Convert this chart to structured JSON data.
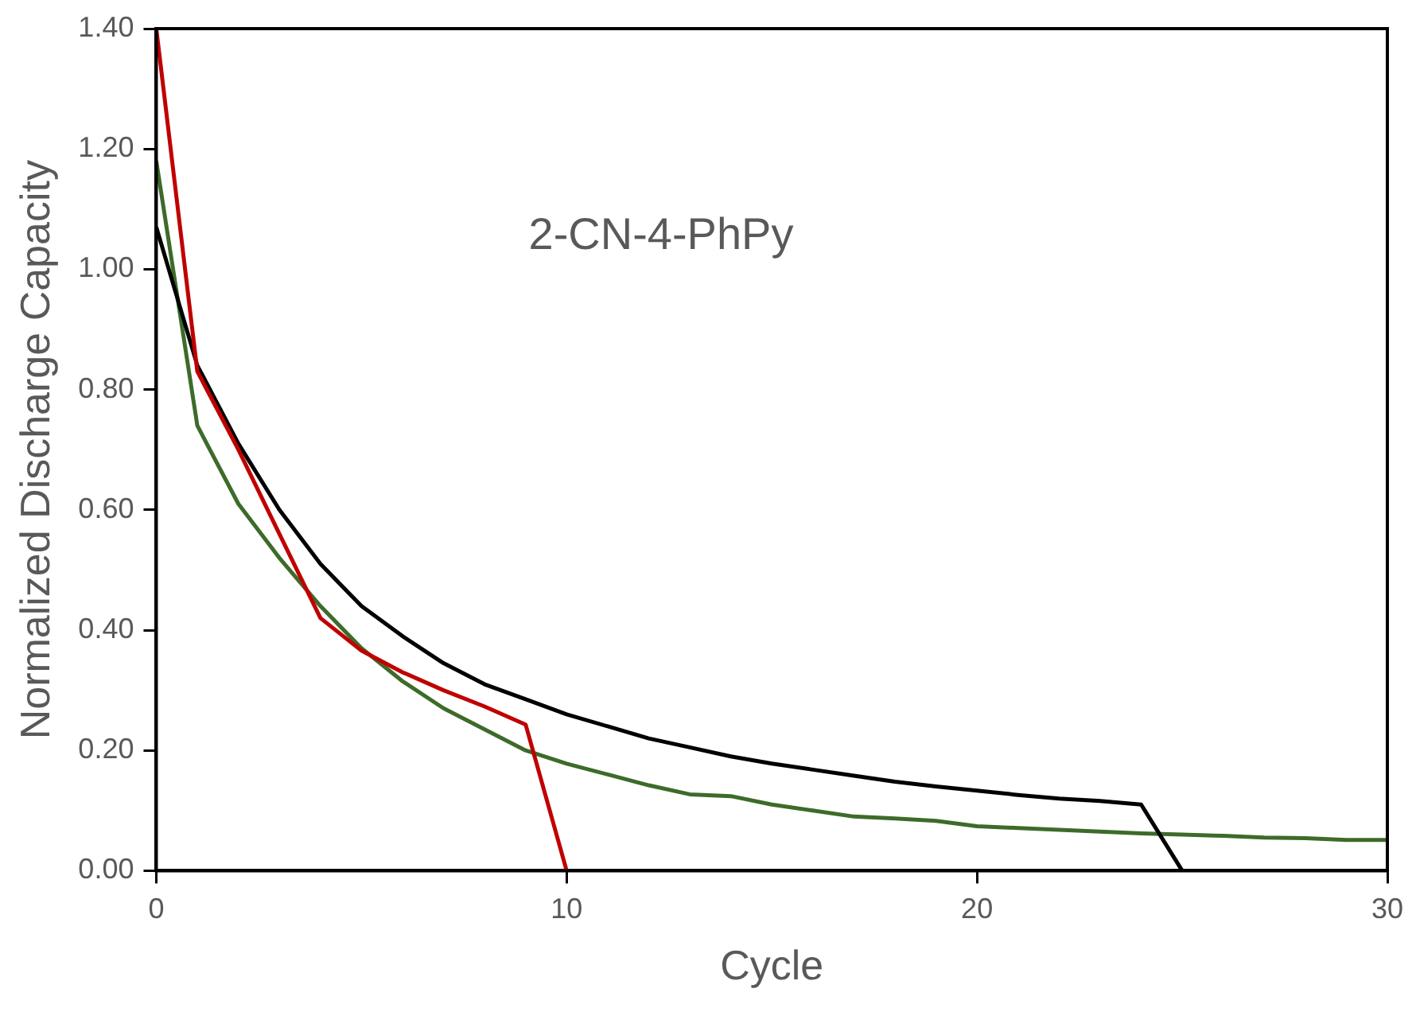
{
  "chart_data": {
    "type": "line",
    "xlabel": "Cycle",
    "ylabel": "Normalized Discharge Capacity",
    "annotations": [
      "2-CN-4-PhPy"
    ],
    "xlim": [
      0,
      30
    ],
    "xticks": [
      0,
      10,
      20,
      30
    ],
    "ylim": [
      0,
      1.4
    ],
    "yticks": [
      {
        "value": 0,
        "label": "0.00"
      },
      {
        "value": 0.2,
        "label": "0.20"
      },
      {
        "value": 0.4,
        "label": "0.40"
      },
      {
        "value": 0.6,
        "label": "0.60"
      },
      {
        "value": 0.8,
        "label": "0.80"
      },
      {
        "value": 1,
        "label": "1.00"
      },
      {
        "value": 1.2,
        "label": "1.20"
      },
      {
        "value": 1.4,
        "label": "1.40"
      }
    ],
    "grid": false,
    "legend": false,
    "marker": "none",
    "line_style": "solid",
    "series": [
      {
        "color": "#c00000",
        "x": [
          0,
          1,
          2,
          3,
          4,
          5,
          6,
          7,
          8,
          9,
          10
        ],
        "values": [
          1.4,
          0.83,
          0.7,
          0.56,
          0.42,
          0.366,
          0.33,
          0.3,
          0.273,
          0.243,
          0
        ]
      },
      {
        "color": "#000000",
        "x": [
          0,
          1,
          2,
          3,
          4,
          5,
          6,
          7,
          8,
          9,
          10,
          11,
          12,
          13,
          14,
          15,
          16,
          17,
          18,
          19,
          20,
          21,
          22,
          23,
          24,
          25
        ],
        "values": [
          1.07,
          0.84,
          0.71,
          0.6,
          0.51,
          0.44,
          0.39,
          0.345,
          0.31,
          0.285,
          0.26,
          0.24,
          0.22,
          0.205,
          0.19,
          0.178,
          0.168,
          0.158,
          0.148,
          0.14,
          0.133,
          0.126,
          0.12,
          0.116,
          0.11,
          0
        ]
      },
      {
        "color": "#3d6b2a",
        "x": [
          0,
          1,
          2,
          3,
          4,
          5,
          6,
          7,
          8,
          9,
          10,
          11,
          12,
          13,
          14,
          15,
          16,
          17,
          18,
          19,
          20,
          21,
          22,
          23,
          24,
          25,
          26,
          27,
          28,
          29,
          30
        ],
        "values": [
          1.18,
          0.74,
          0.61,
          0.52,
          0.44,
          0.37,
          0.315,
          0.27,
          0.235,
          0.2,
          0.178,
          0.16,
          0.142,
          0.127,
          0.124,
          0.11,
          0.1,
          0.09,
          0.087,
          0.083,
          0.074,
          0.071,
          0.068,
          0.065,
          0.062,
          0.06,
          0.058,
          0.055,
          0.054,
          0.051,
          0.051
        ]
      }
    ]
  }
}
